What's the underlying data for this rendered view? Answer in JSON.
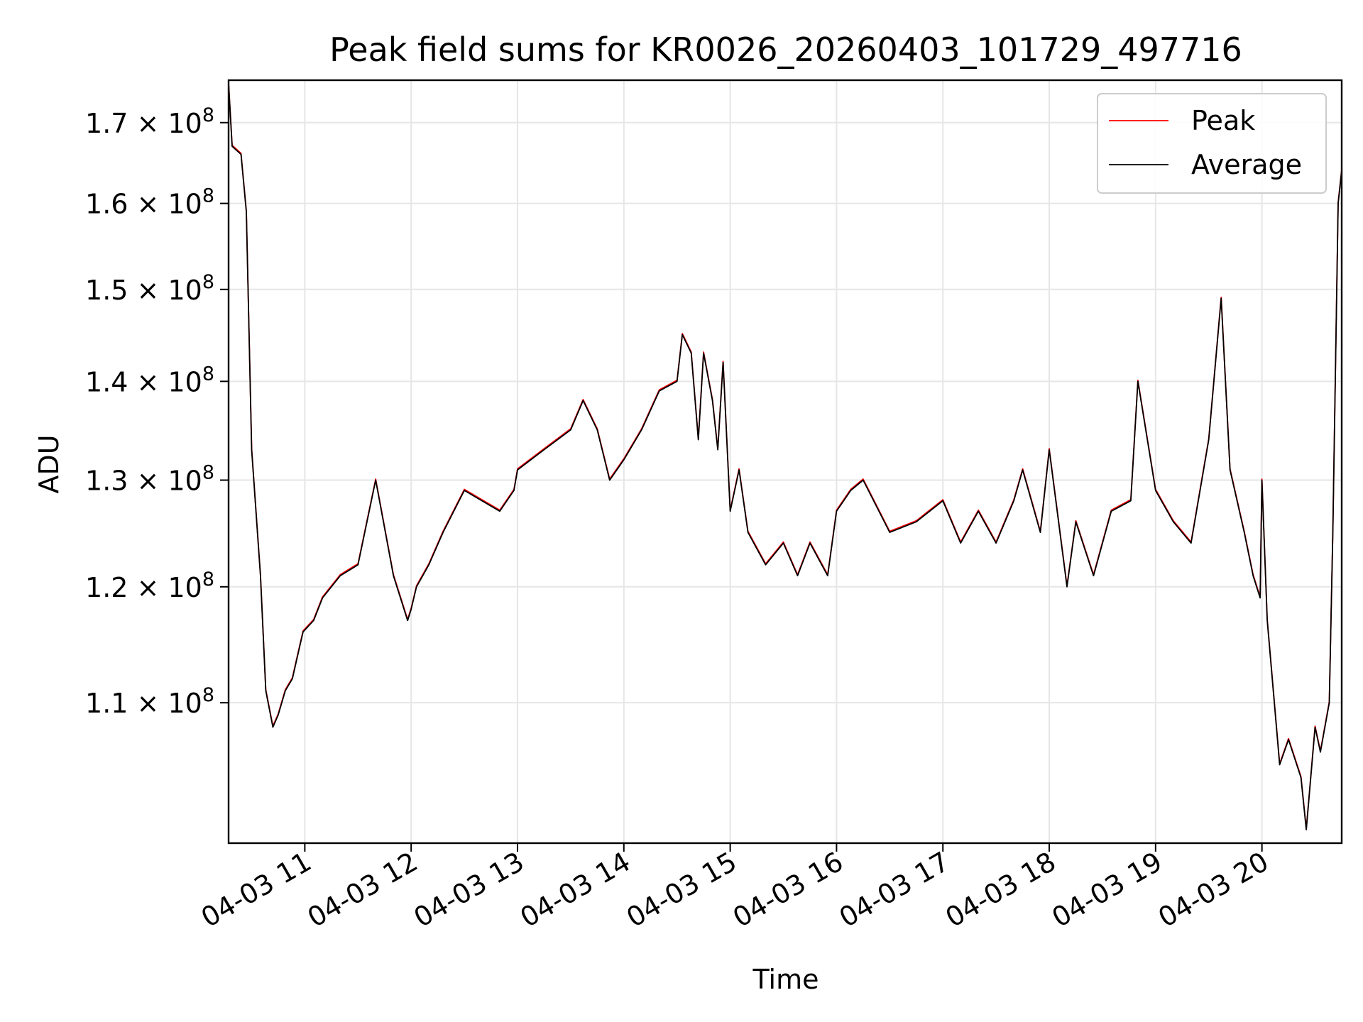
{
  "chart_data": {
    "type": "line",
    "title": "Peak field sums for KR0026_20260403_101729_497716",
    "xlabel": "Time",
    "ylabel": "ADU",
    "y_scale": "log",
    "ylim": [
      99000000,
      175500000
    ],
    "xlim": [
      "2026-04-03 10:17",
      "2026-04-03 20:45"
    ],
    "x_ticks": [
      "04-03 11",
      "04-03 12",
      "04-03 13",
      "04-03 14",
      "04-03 15",
      "04-03 16",
      "04-03 17",
      "04-03 18",
      "04-03 19",
      "04-03 20"
    ],
    "y_ticks": [
      {
        "mantissa": "1.1",
        "exp": "8",
        "value": 110000000
      },
      {
        "mantissa": "1.2",
        "exp": "8",
        "value": 120000000
      },
      {
        "mantissa": "1.3",
        "exp": "8",
        "value": 130000000
      },
      {
        "mantissa": "1.4",
        "exp": "8",
        "value": 140000000
      },
      {
        "mantissa": "1.5",
        "exp": "8",
        "value": 150000000
      },
      {
        "mantissa": "1.6",
        "exp": "8",
        "value": 160000000
      },
      {
        "mantissa": "1.7",
        "exp": "8",
        "value": 170000000
      }
    ],
    "grid": true,
    "legend_position": "top-right",
    "series": [
      {
        "name": "Peak",
        "color": "#ff0000"
      },
      {
        "name": "Average",
        "color": "#000000"
      }
    ],
    "x": [
      "2026-04-03 10:17",
      "2026-04-03 10:19",
      "2026-04-03 10:24",
      "2026-04-03 10:27",
      "2026-04-03 10:30",
      "2026-04-03 10:35",
      "2026-04-03 10:38",
      "2026-04-03 10:42",
      "2026-04-03 10:45",
      "2026-04-03 10:49",
      "2026-04-03 10:53",
      "2026-04-03 10:56",
      "2026-04-03 10:59",
      "2026-04-03 11:05",
      "2026-04-03 11:10",
      "2026-04-03 11:20",
      "2026-04-03 11:30",
      "2026-04-03 11:40",
      "2026-04-03 11:50",
      "2026-04-03 11:58",
      "2026-04-03 12:00",
      "2026-04-03 12:03",
      "2026-04-03 12:10",
      "2026-04-03 12:18",
      "2026-04-03 12:30",
      "2026-04-03 12:50",
      "2026-04-03 12:58",
      "2026-04-03 13:00",
      "2026-04-03 13:15",
      "2026-04-03 13:30",
      "2026-04-03 13:37",
      "2026-04-03 13:45",
      "2026-04-03 13:52",
      "2026-04-03 14:00",
      "2026-04-03 14:10",
      "2026-04-03 14:20",
      "2026-04-03 14:30",
      "2026-04-03 14:33",
      "2026-04-03 14:38",
      "2026-04-03 14:42",
      "2026-04-03 14:45",
      "2026-04-03 14:50",
      "2026-04-03 14:53",
      "2026-04-03 14:56",
      "2026-04-03 15:00",
      "2026-04-03 15:05",
      "2026-04-03 15:10",
      "2026-04-03 15:20",
      "2026-04-03 15:30",
      "2026-04-03 15:38",
      "2026-04-03 15:45",
      "2026-04-03 15:55",
      "2026-04-03 16:00",
      "2026-04-03 16:08",
      "2026-04-03 16:15",
      "2026-04-03 16:30",
      "2026-04-03 16:45",
      "2026-04-03 17:00",
      "2026-04-03 17:10",
      "2026-04-03 17:20",
      "2026-04-03 17:30",
      "2026-04-03 17:40",
      "2026-04-03 17:45",
      "2026-04-03 17:55",
      "2026-04-03 18:00",
      "2026-04-03 18:10",
      "2026-04-03 18:15",
      "2026-04-03 18:25",
      "2026-04-03 18:35",
      "2026-04-03 18:46",
      "2026-04-03 18:50",
      "2026-04-03 19:00",
      "2026-04-03 19:10",
      "2026-04-03 19:20",
      "2026-04-03 19:30",
      "2026-04-03 19:37",
      "2026-04-03 19:42",
      "2026-04-03 19:50",
      "2026-04-03 19:55",
      "2026-04-03 19:59",
      "2026-04-03 20:00",
      "2026-04-03 20:03",
      "2026-04-03 20:10",
      "2026-04-03 20:15",
      "2026-04-03 20:22",
      "2026-04-03 20:25",
      "2026-04-03 20:30",
      "2026-04-03 20:33",
      "2026-04-03 20:38",
      "2026-04-03 20:40",
      "2026-04-03 20:43",
      "2026-04-03 20:45"
    ],
    "y": [
      175000000,
      167000000,
      166000000,
      159000000,
      133000000,
      121000000,
      111000000,
      108000000,
      109000000,
      111000000,
      112000000,
      114000000,
      116000000,
      117000000,
      119000000,
      121000000,
      122000000,
      130000000,
      121000000,
      117000000,
      118000000,
      120000000,
      122000000,
      125000000,
      129000000,
      127000000,
      129000000,
      131000000,
      133000000,
      135000000,
      138000000,
      135000000,
      130000000,
      132000000,
      135000000,
      139000000,
      140000000,
      145000000,
      143000000,
      134000000,
      143000000,
      138000000,
      133000000,
      142000000,
      127000000,
      131000000,
      125000000,
      122000000,
      124000000,
      121000000,
      124000000,
      121000000,
      127000000,
      129000000,
      130000000,
      125000000,
      126000000,
      128000000,
      124000000,
      127000000,
      124000000,
      128000000,
      131000000,
      125000000,
      133000000,
      120000000,
      126000000,
      121000000,
      127000000,
      128000000,
      140000000,
      129000000,
      126000000,
      124000000,
      134000000,
      149000000,
      131000000,
      125000000,
      121000000,
      119000000,
      130000000,
      117000000,
      105000000,
      107000000,
      104000000,
      100000000,
      108000000,
      106000000,
      110000000,
      125000000,
      160000000,
      164000000
    ]
  }
}
